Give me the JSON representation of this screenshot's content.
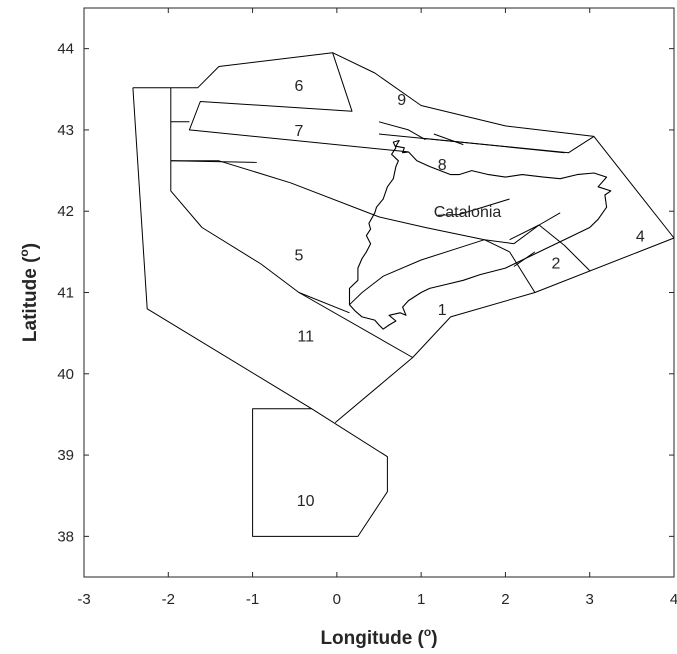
{
  "chart_data": {
    "type": "map",
    "title": "",
    "xlabel": "Longitude (",
    "xlabel_sup": "o",
    "xlabel_end": ")",
    "ylabel": "Latitude (",
    "ylabel_sup": "o",
    "ylabel_end": ")",
    "xlim": [
      -3,
      4
    ],
    "ylim": [
      37.5,
      44.5
    ],
    "xticks": [
      "-3",
      "-2",
      "-1",
      "0",
      "1",
      "2",
      "3",
      "4"
    ],
    "yticks": [
      "38",
      "39",
      "40",
      "41",
      "42",
      "43",
      "44"
    ],
    "grid": false,
    "zone_labels": [
      {
        "text": "6",
        "lon": -0.45,
        "lat": 43.55
      },
      {
        "text": "9",
        "lon": 0.77,
        "lat": 43.38
      },
      {
        "text": "7",
        "lon": -0.45,
        "lat": 43.0
      },
      {
        "text": "8",
        "lon": 1.25,
        "lat": 42.58
      },
      {
        "text": "Catalonia",
        "lon": 1.55,
        "lat": 42.0
      },
      {
        "text": "4",
        "lon": 3.6,
        "lat": 41.7
      },
      {
        "text": "2",
        "lon": 2.6,
        "lat": 41.37
      },
      {
        "text": "5",
        "lon": -0.45,
        "lat": 41.47
      },
      {
        "text": "1",
        "lon": 1.25,
        "lat": 40.8
      },
      {
        "text": "11",
        "lon": -0.37,
        "lat": 40.47
      },
      {
        "text": "10",
        "lon": -0.37,
        "lat": 38.45
      }
    ],
    "polylines": [
      [
        [
          -2.42,
          43.52
        ],
        [
          -2.25,
          40.8
        ],
        [
          -0.3,
          39.57
        ],
        [
          0.6,
          38.98
        ],
        [
          0.6,
          38.55
        ],
        [
          0.25,
          38.0
        ],
        [
          -1.0,
          38.0
        ],
        [
          -1.0,
          39.57
        ],
        [
          -0.3,
          39.57
        ]
      ],
      [
        [
          -2.42,
          43.52
        ],
        [
          -1.97,
          43.52
        ]
      ],
      [
        [
          -1.97,
          43.52
        ],
        [
          -1.97,
          42.25
        ],
        [
          -1.6,
          41.8
        ],
        [
          -0.9,
          41.35
        ],
        [
          -0.45,
          41.0
        ],
        [
          0.15,
          40.75
        ]
      ],
      [
        [
          -1.97,
          43.52
        ],
        [
          -1.65,
          43.52
        ],
        [
          -1.4,
          43.78
        ],
        [
          -0.05,
          43.95
        ],
        [
          0.45,
          43.7
        ],
        [
          1.0,
          43.3
        ],
        [
          2.0,
          43.05
        ],
        [
          3.05,
          42.92
        ],
        [
          4.0,
          41.67
        ],
        [
          2.35,
          41.0
        ],
        [
          1.35,
          40.7
        ],
        [
          0.9,
          40.2
        ],
        [
          -0.02,
          39.4
        ]
      ],
      [
        [
          -0.05,
          43.95
        ],
        [
          0.18,
          43.23
        ],
        [
          -1.62,
          43.35
        ],
        [
          -1.75,
          43.0
        ],
        [
          0.85,
          42.73
        ]
      ],
      [
        [
          -1.97,
          43.1
        ],
        [
          -1.75,
          43.1
        ]
      ],
      [
        [
          1.0,
          42.9
        ],
        [
          2.7,
          42.72
        ]
      ],
      [
        [
          0.5,
          42.95
        ],
        [
          2.75,
          42.72
        ],
        [
          3.05,
          42.92
        ]
      ],
      [
        [
          -1.97,
          42.62
        ],
        [
          -1.4,
          42.62
        ],
        [
          -0.55,
          42.35
        ],
        [
          0.5,
          41.93
        ],
        [
          1.05,
          41.8
        ],
        [
          1.75,
          41.65
        ],
        [
          2.1,
          41.6
        ]
      ],
      [
        [
          1.75,
          41.65
        ],
        [
          1.45,
          41.55
        ],
        [
          1.0,
          41.4
        ],
        [
          0.55,
          41.2
        ],
        [
          0.3,
          41.0
        ],
        [
          0.15,
          40.85
        ]
      ],
      [
        [
          1.2,
          41.95
        ],
        [
          1.45,
          41.96
        ],
        [
          2.05,
          42.15
        ]
      ],
      [
        [
          0.5,
          43.1
        ],
        [
          0.85,
          43.0
        ],
        [
          1.05,
          42.88
        ]
      ],
      [
        [
          1.15,
          42.95
        ],
        [
          1.5,
          42.82
        ]
      ],
      [
        [
          -1.97,
          42.62
        ],
        [
          -0.95,
          42.6
        ]
      ],
      [
        [
          2.35,
          41.0
        ],
        [
          2.05,
          41.5
        ],
        [
          1.75,
          41.65
        ]
      ],
      [
        [
          2.1,
          41.6
        ],
        [
          2.4,
          41.83
        ],
        [
          2.7,
          41.58
        ],
        [
          3.0,
          41.27
        ]
      ],
      [
        [
          2.65,
          41.98
        ],
        [
          2.4,
          41.83
        ],
        [
          2.05,
          41.65
        ]
      ],
      [
        [
          -0.45,
          41.0
        ],
        [
          0.9,
          40.2
        ]
      ],
      [
        [
          2.1,
          41.32
        ],
        [
          2.35,
          41.5
        ]
      ]
    ],
    "coastline": [
      [
        0.85,
        42.73
      ],
      [
        0.78,
        42.72
      ],
      [
        0.8,
        42.78
      ],
      [
        0.7,
        42.8
      ],
      [
        0.74,
        42.87
      ],
      [
        0.67,
        42.85
      ],
      [
        0.7,
        42.78
      ],
      [
        0.65,
        42.7
      ],
      [
        0.73,
        42.62
      ],
      [
        0.7,
        42.55
      ],
      [
        0.67,
        42.4
      ],
      [
        0.6,
        42.3
      ],
      [
        0.55,
        42.15
      ],
      [
        0.47,
        42.05
      ],
      [
        0.45,
        41.98
      ],
      [
        0.38,
        41.85
      ],
      [
        0.4,
        41.78
      ],
      [
        0.35,
        41.7
      ],
      [
        0.4,
        41.6
      ],
      [
        0.35,
        41.5
      ],
      [
        0.3,
        41.42
      ],
      [
        0.25,
        41.3
      ],
      [
        0.25,
        41.15
      ],
      [
        0.15,
        41.05
      ],
      [
        0.15,
        40.85
      ],
      [
        0.22,
        40.77
      ],
      [
        0.3,
        40.7
      ],
      [
        0.45,
        40.66
      ],
      [
        0.5,
        40.6
      ],
      [
        0.55,
        40.55
      ],
      [
        0.62,
        40.6
      ],
      [
        0.7,
        40.65
      ],
      [
        0.62,
        40.72
      ],
      [
        0.75,
        40.75
      ],
      [
        0.82,
        40.72
      ],
      [
        0.78,
        40.82
      ],
      [
        0.85,
        40.9
      ],
      [
        1.0,
        41.0
      ],
      [
        1.1,
        41.05
      ],
      [
        1.3,
        41.1
      ],
      [
        1.5,
        41.15
      ],
      [
        1.7,
        41.22
      ],
      [
        2.0,
        41.3
      ],
      [
        2.2,
        41.4
      ],
      [
        2.4,
        41.5
      ],
      [
        2.6,
        41.6
      ],
      [
        2.8,
        41.7
      ],
      [
        3.0,
        41.8
      ],
      [
        3.1,
        41.9
      ],
      [
        3.2,
        42.05
      ],
      [
        3.18,
        42.2
      ],
      [
        3.25,
        42.25
      ],
      [
        3.1,
        42.3
      ],
      [
        3.2,
        42.42
      ],
      [
        3.05,
        42.47
      ],
      [
        2.85,
        42.45
      ],
      [
        2.65,
        42.4
      ],
      [
        2.45,
        42.42
      ],
      [
        2.2,
        42.45
      ],
      [
        2.0,
        42.42
      ],
      [
        1.8,
        42.45
      ],
      [
        1.6,
        42.5
      ],
      [
        1.45,
        42.45
      ],
      [
        1.35,
        42.45
      ],
      [
        1.1,
        42.55
      ],
      [
        0.95,
        42.62
      ],
      [
        0.85,
        42.73
      ]
    ]
  }
}
